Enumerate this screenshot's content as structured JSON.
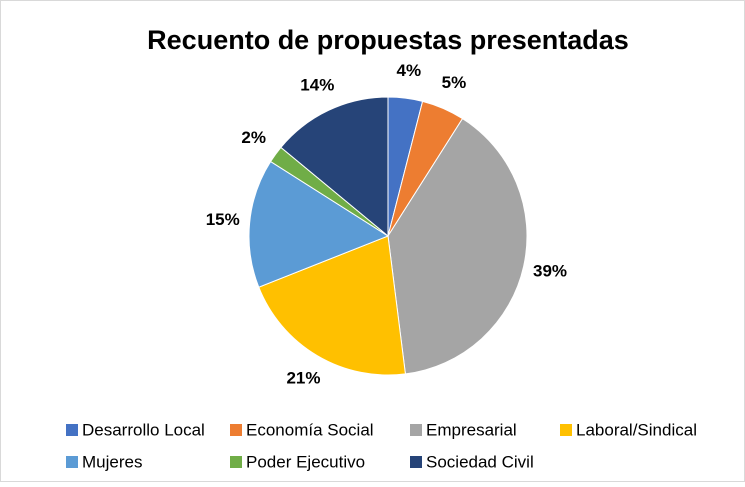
{
  "chart_data": {
    "type": "pie",
    "title": "Recuento de propuestas presentadas",
    "categories": [
      "Desarrollo Local",
      "Economía Social",
      "Empresarial",
      "Laboral/Sindical",
      "Mujeres",
      "Poder Ejecutivo",
      "Sociedad Civil"
    ],
    "values": [
      4,
      5,
      39,
      21,
      15,
      2,
      14
    ],
    "value_labels": [
      "4%",
      "5%",
      "39%",
      "21%",
      "15%",
      "2%",
      "14%"
    ],
    "colors": [
      "#4472c4",
      "#ed7d31",
      "#a5a5a5",
      "#ffc000",
      "#5b9bd5",
      "#70ad47",
      "#264478"
    ],
    "legend": "bottom"
  }
}
